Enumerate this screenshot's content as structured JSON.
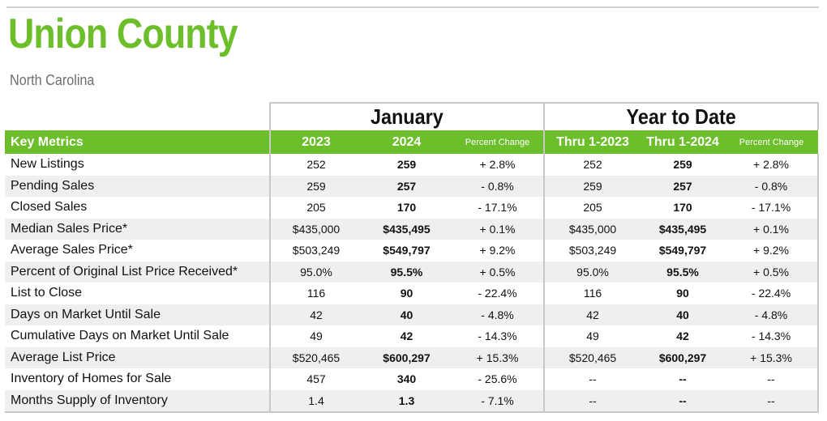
{
  "header": {
    "title": "Union County",
    "subtitle": "North Carolina"
  },
  "table": {
    "groups": {
      "period1": "January",
      "period2": "Year to Date"
    },
    "columns": {
      "metric": "Key Metrics",
      "year1": "2023",
      "year2": "2024",
      "pct1": "Percent Change",
      "thru1": "Thru 1-2023",
      "thru2": "Thru 1-2024",
      "pct2": "Percent Change"
    },
    "rows": [
      {
        "metric": "New Listings",
        "v2023": "252",
        "v2024": "259",
        "pct": "+ 2.8%",
        "ytd2023": "252",
        "ytd2024": "259",
        "ytdPct": "+ 2.8%"
      },
      {
        "metric": "Pending Sales",
        "v2023": "259",
        "v2024": "257",
        "pct": "- 0.8%",
        "ytd2023": "259",
        "ytd2024": "257",
        "ytdPct": "- 0.8%"
      },
      {
        "metric": "Closed Sales",
        "v2023": "205",
        "v2024": "170",
        "pct": "- 17.1%",
        "ytd2023": "205",
        "ytd2024": "170",
        "ytdPct": "- 17.1%"
      },
      {
        "metric": "Median Sales Price*",
        "v2023": "$435,000",
        "v2024": "$435,495",
        "pct": "+ 0.1%",
        "ytd2023": "$435,000",
        "ytd2024": "$435,495",
        "ytdPct": "+ 0.1%"
      },
      {
        "metric": "Average Sales Price*",
        "v2023": "$503,249",
        "v2024": "$549,797",
        "pct": "+ 9.2%",
        "ytd2023": "$503,249",
        "ytd2024": "$549,797",
        "ytdPct": "+ 9.2%"
      },
      {
        "metric": "Percent of Original List Price Received*",
        "v2023": "95.0%",
        "v2024": "95.5%",
        "pct": "+ 0.5%",
        "ytd2023": "95.0%",
        "ytd2024": "95.5%",
        "ytdPct": "+ 0.5%"
      },
      {
        "metric": "List to Close",
        "v2023": "116",
        "v2024": "90",
        "pct": "- 22.4%",
        "ytd2023": "116",
        "ytd2024": "90",
        "ytdPct": "- 22.4%"
      },
      {
        "metric": "Days on Market Until Sale",
        "v2023": "42",
        "v2024": "40",
        "pct": "- 4.8%",
        "ytd2023": "42",
        "ytd2024": "40",
        "ytdPct": "- 4.8%"
      },
      {
        "metric": "Cumulative Days on Market Until Sale",
        "v2023": "49",
        "v2024": "42",
        "pct": "- 14.3%",
        "ytd2023": "49",
        "ytd2024": "42",
        "ytdPct": "- 14.3%"
      },
      {
        "metric": "Average List Price",
        "v2023": "$520,465",
        "v2024": "$600,297",
        "pct": "+ 15.3%",
        "ytd2023": "$520,465",
        "ytd2024": "$600,297",
        "ytdPct": "+ 15.3%"
      },
      {
        "metric": "Inventory of Homes for Sale",
        "v2023": "457",
        "v2024": "340",
        "pct": "- 25.6%",
        "ytd2023": "--",
        "ytd2024": "--",
        "ytdPct": "--"
      },
      {
        "metric": "Months Supply of Inventory",
        "v2023": "1.4",
        "v2024": "1.3",
        "pct": "- 7.1%",
        "ytd2023": "--",
        "ytd2024": "--",
        "ytdPct": "--"
      }
    ]
  },
  "colors": {
    "brand_green": "#6cbf2b",
    "row_stripe": "#efefef",
    "border_gray": "#c8c8c8"
  }
}
